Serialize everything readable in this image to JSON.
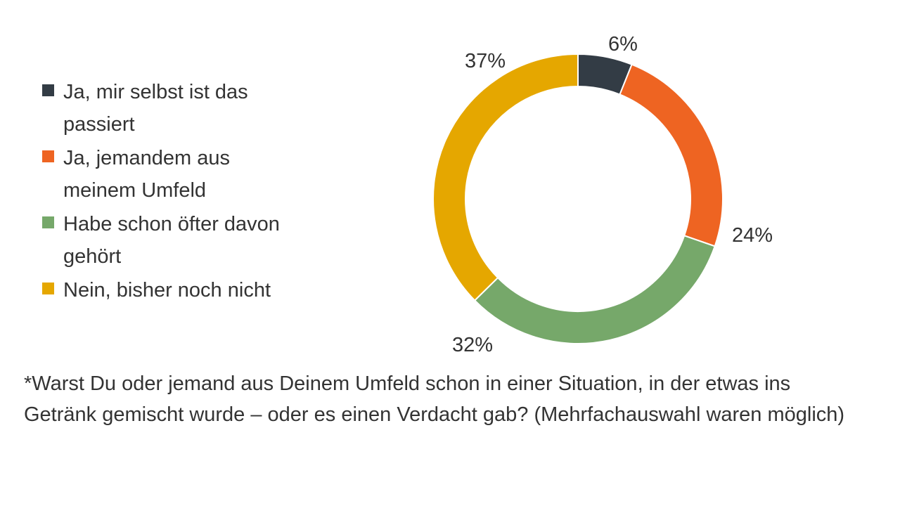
{
  "chart_data": {
    "type": "pie",
    "style": "donut",
    "legend_position": "left",
    "series": [
      {
        "label": "Ja, mir selbst ist das passiert",
        "value": 6,
        "value_label": "6%",
        "color": "#333c45"
      },
      {
        "label": "Ja, jemandem aus meinem Umfeld",
        "value": 24,
        "value_label": "24%",
        "color": "#ee6422"
      },
      {
        "label": "Habe schon öfter davon gehört",
        "value": 32,
        "value_label": "32%",
        "color": "#76a86a"
      },
      {
        "label": "Nein, bisher noch nicht",
        "value": 37,
        "value_label": "37%",
        "color": "#e5a700"
      }
    ]
  },
  "legend": {
    "items": [
      {
        "label": "Ja, mir selbst ist das passiert"
      },
      {
        "label": "Ja, jemandem aus meinem Umfeld"
      },
      {
        "label": "Habe schon öfter davon gehört"
      },
      {
        "label": "Nein, bisher noch nicht"
      }
    ]
  },
  "footnote": "*Warst Du oder jemand aus Deinem Umfeld schon in einer Situation, in der etwas ins Getränk gemischt wurde – oder es einen Verdacht gab? (Mehrfachauswahl waren möglich)"
}
